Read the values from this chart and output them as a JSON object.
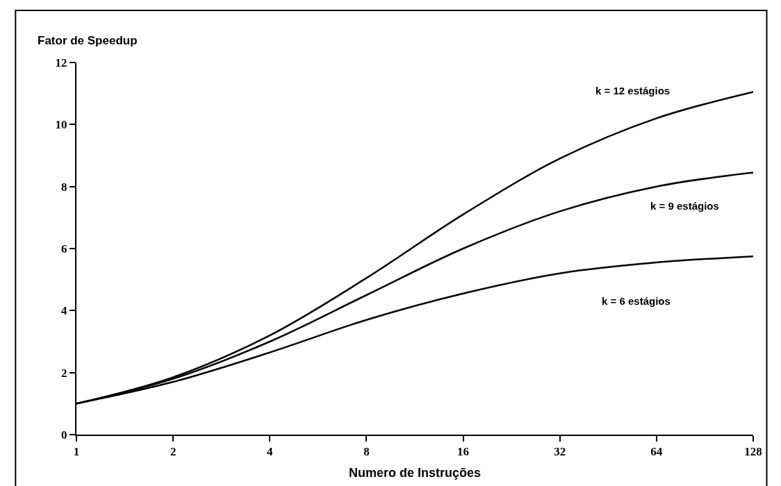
{
  "chart_data": {
    "type": "line",
    "ylabel": "Fator de Speedup",
    "xlabel": "Numero de Instruções",
    "x": [
      1,
      2,
      4,
      8,
      16,
      32,
      64,
      128
    ],
    "series": [
      {
        "name": "k = 12 estágios",
        "color": "#000000",
        "values": [
          1,
          1.85,
          3.2,
          5.05,
          7.1,
          8.9,
          10.2,
          11.05
        ]
      },
      {
        "name": "k = 9 estágios",
        "color": "#000000",
        "values": [
          1,
          1.8,
          3,
          4.5,
          6,
          7.2,
          8,
          8.45
        ]
      },
      {
        "name": "k = 6 estágios",
        "color": "#000000",
        "values": [
          1,
          1.7,
          2.65,
          3.7,
          4.55,
          5.2,
          5.55,
          5.75
        ]
      }
    ],
    "log": "x",
    "xlim": [
      1,
      128
    ],
    "xticks": [
      1,
      2,
      4,
      8,
      16,
      32,
      64,
      128
    ],
    "ylim": [
      0,
      12
    ],
    "yticks": [
      0,
      2,
      4,
      6,
      8,
      10,
      12
    ],
    "legend": false,
    "marker": "none",
    "line_style": "solid"
  }
}
